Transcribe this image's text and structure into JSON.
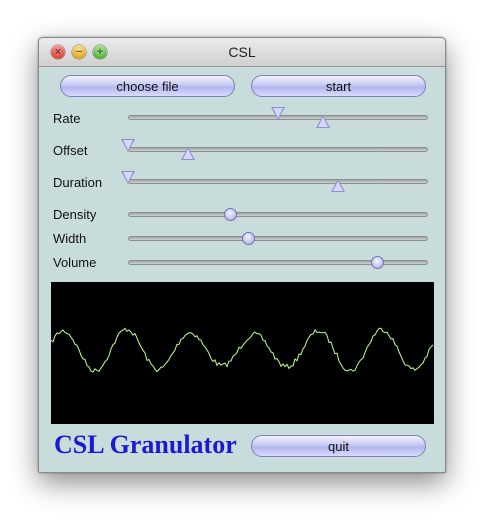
{
  "window": {
    "title": "CSL"
  },
  "buttons": {
    "choose_file": "choose file",
    "start": "start",
    "quit": "quit"
  },
  "sliders": [
    {
      "label": "Rate",
      "style": "range",
      "low": 0.5,
      "high": 0.65
    },
    {
      "label": "Offset",
      "style": "range",
      "low": 0.0,
      "high": 0.2
    },
    {
      "label": "Duration",
      "style": "range",
      "low": 0.0,
      "high": 0.7
    },
    {
      "label": "Density",
      "style": "single",
      "value": 0.34
    },
    {
      "label": "Width",
      "style": "single",
      "value": 0.4
    },
    {
      "label": "Volume",
      "style": "single",
      "value": 0.83
    }
  ],
  "scope": {
    "background": "#000000",
    "trace_color": "#c8ff8a",
    "cycles": 6
  },
  "footer": {
    "brand": "CSL Granulator"
  },
  "colors": {
    "panel": "#c9dcdc",
    "brand_text": "#1a1ad6",
    "button": "#c7c9f3"
  }
}
